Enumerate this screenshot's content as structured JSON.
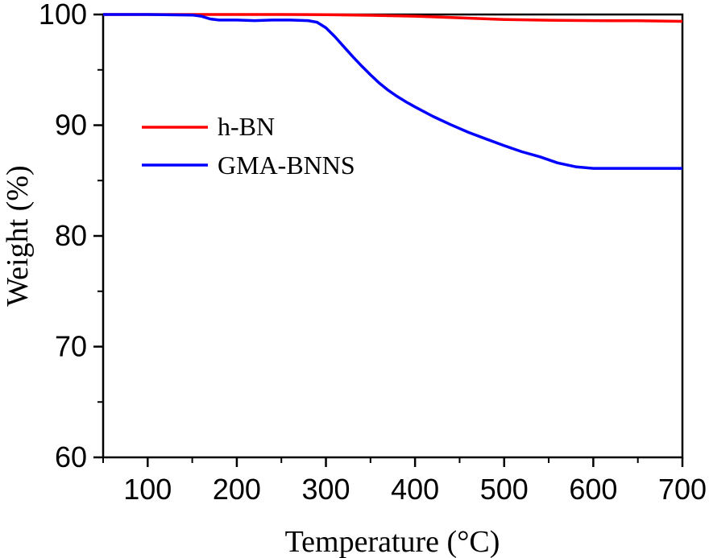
{
  "chart_data": {
    "type": "line",
    "xlabel": "Temperature (°C)",
    "ylabel": "Weight (%)",
    "xlim": [
      50,
      700
    ],
    "ylim": [
      60,
      100
    ],
    "xticks": [
      100,
      200,
      300,
      400,
      500,
      600,
      700
    ],
    "xtick_labels": [
      "100",
      "200",
      "300",
      "400",
      "500",
      "600",
      "700"
    ],
    "yticks": [
      60,
      70,
      80,
      90,
      100
    ],
    "ytick_labels": [
      "60",
      "70",
      "80",
      "90",
      "100"
    ],
    "grid": false,
    "legend_position": "center-left",
    "series": [
      {
        "name": "h-BN",
        "color": "#ff0000",
        "x": [
          50,
          100,
          150,
          200,
          250,
          300,
          350,
          400,
          450,
          500,
          550,
          600,
          650,
          700
        ],
        "y": [
          100,
          100,
          100,
          100,
          100,
          99.98,
          99.93,
          99.85,
          99.7,
          99.55,
          99.48,
          99.45,
          99.43,
          99.38
        ]
      },
      {
        "name": "GMA-BNNS",
        "color": "#0000ff",
        "x": [
          50,
          100,
          150,
          160,
          170,
          180,
          200,
          220,
          240,
          260,
          280,
          290,
          300,
          310,
          320,
          330,
          340,
          350,
          360,
          370,
          380,
          390,
          400,
          420,
          440,
          460,
          480,
          500,
          520,
          540,
          560,
          580,
          600,
          650,
          700
        ],
        "y": [
          100,
          100,
          99.95,
          99.85,
          99.6,
          99.5,
          99.5,
          99.45,
          99.5,
          99.5,
          99.45,
          99.3,
          98.8,
          98.0,
          97.1,
          96.2,
          95.35,
          94.55,
          93.8,
          93.15,
          92.6,
          92.1,
          91.65,
          90.8,
          90.05,
          89.35,
          88.75,
          88.15,
          87.6,
          87.15,
          86.6,
          86.25,
          86.1,
          86.1,
          86.1
        ]
      }
    ]
  }
}
